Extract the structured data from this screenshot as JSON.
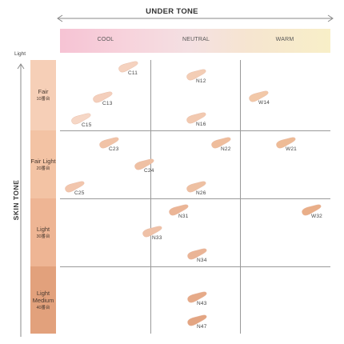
{
  "under_tone": {
    "title": "UNDER TONE",
    "columns": [
      "COOL",
      "NEUTRAL",
      "WARM"
    ]
  },
  "skin_tone": {
    "title": "SKIN TONE",
    "light_label": "Light",
    "rows": [
      {
        "main": "Fair",
        "sub": "10番台",
        "color": "#f6cfb7"
      },
      {
        "main": "Fair Light",
        "sub": "20番台",
        "color": "#f3c3a4"
      },
      {
        "main": "Light",
        "sub": "30番台",
        "color": "#eeb594"
      },
      {
        "main": "Light Medium",
        "sub": "40番台",
        "color": "#e2a17c"
      }
    ]
  },
  "swatches": [
    {
      "label": "C11",
      "color": "#f5d2bf"
    },
    {
      "label": "C13",
      "color": "#f4cfbc"
    },
    {
      "label": "C15",
      "color": "#f6d7c6"
    },
    {
      "label": "N12",
      "color": "#f3cdb5"
    },
    {
      "label": "N16",
      "color": "#f2c9b0"
    },
    {
      "label": "W14",
      "color": "#f2c8a8"
    },
    {
      "label": "C23",
      "color": "#f1c3a7"
    },
    {
      "label": "C24",
      "color": "#efc0a3"
    },
    {
      "label": "C25",
      "color": "#f2c6ad"
    },
    {
      "label": "N22",
      "color": "#efbd9c"
    },
    {
      "label": "N26",
      "color": "#eec0a2"
    },
    {
      "label": "W21",
      "color": "#eebb96"
    },
    {
      "label": "N31",
      "color": "#ebb596"
    },
    {
      "label": "N33",
      "color": "#efc1a7"
    },
    {
      "label": "N34",
      "color": "#eab496"
    },
    {
      "label": "W32",
      "color": "#e9ae88"
    },
    {
      "label": "N43",
      "color": "#e6aa88"
    },
    {
      "label": "N47",
      "color": "#e3a582"
    }
  ]
}
